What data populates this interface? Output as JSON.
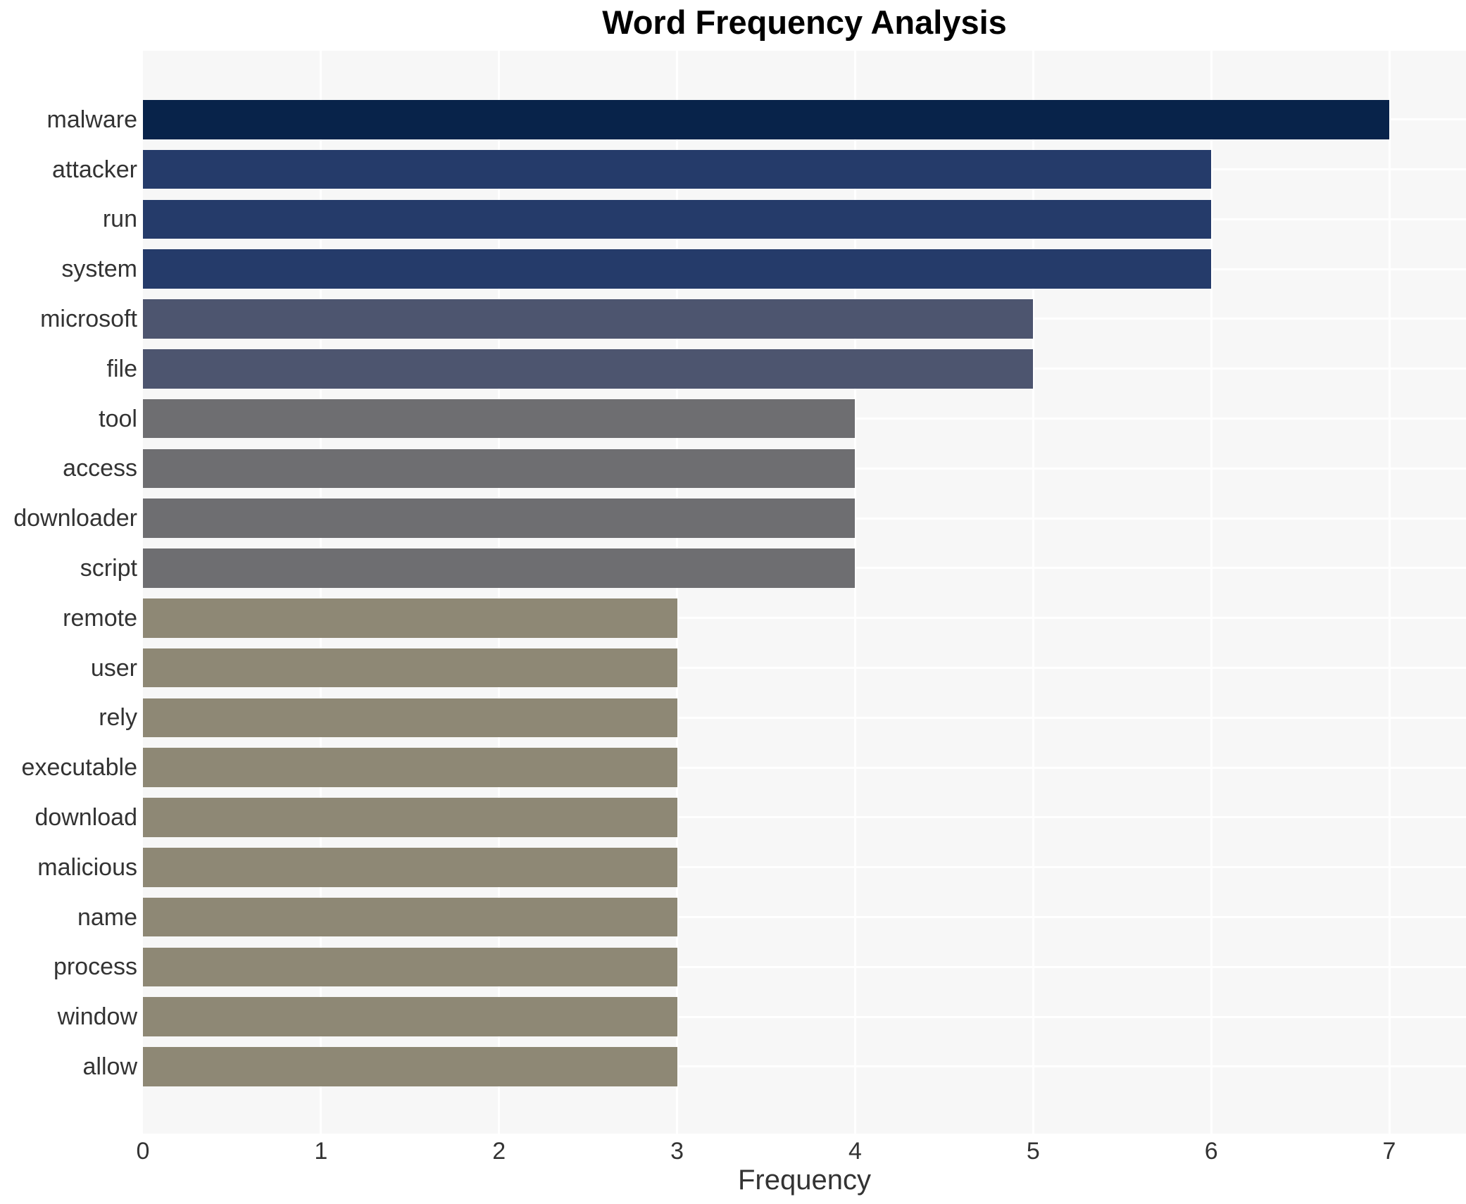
{
  "chart_data": {
    "type": "bar",
    "orientation": "horizontal",
    "title": "Word Frequency Analysis",
    "xlabel": "Frequency",
    "ylabel": "",
    "categories": [
      "malware",
      "attacker",
      "run",
      "system",
      "microsoft",
      "file",
      "tool",
      "access",
      "downloader",
      "script",
      "remote",
      "user",
      "rely",
      "executable",
      "download",
      "malicious",
      "name",
      "process",
      "window",
      "allow"
    ],
    "values": [
      7,
      6,
      6,
      6,
      5,
      5,
      4,
      4,
      4,
      4,
      3,
      3,
      3,
      3,
      3,
      3,
      3,
      3,
      3,
      3
    ],
    "xticks": [
      0,
      1,
      2,
      3,
      4,
      5,
      6,
      7
    ],
    "xlim": [
      0,
      7.43
    ],
    "grid": "white-major-gridlines-on-gray-panel",
    "legend": "none",
    "colors_by_value": {
      "7": "#08234a",
      "6": "#253b6a",
      "5": "#4d556f",
      "4": "#6e6e71",
      "3": "#8e8875"
    },
    "panel_background": "#f7f7f7",
    "gridline_color": "#ffffff",
    "tick_text_color": "#333333",
    "title_color": "#000000"
  }
}
